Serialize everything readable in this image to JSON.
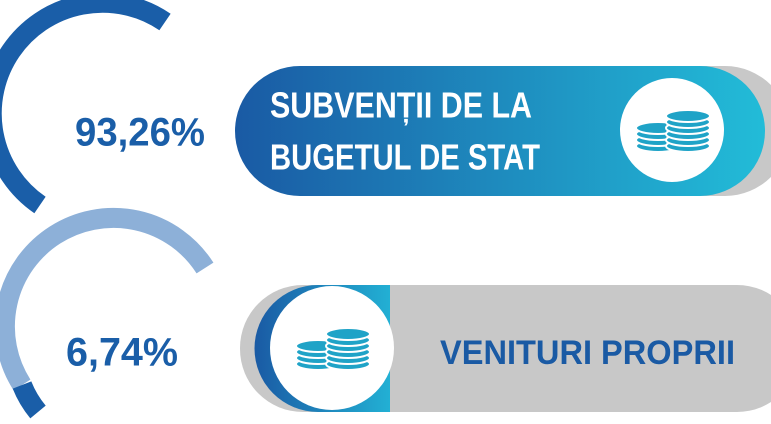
{
  "items": [
    {
      "value": "93,26%",
      "label": [
        "SUBVENȚII DE LA",
        "BUGETUL DE STAT"
      ]
    },
    {
      "value": "6,74%",
      "label": [
        "VENITURI PROPRII"
      ]
    }
  ]
}
